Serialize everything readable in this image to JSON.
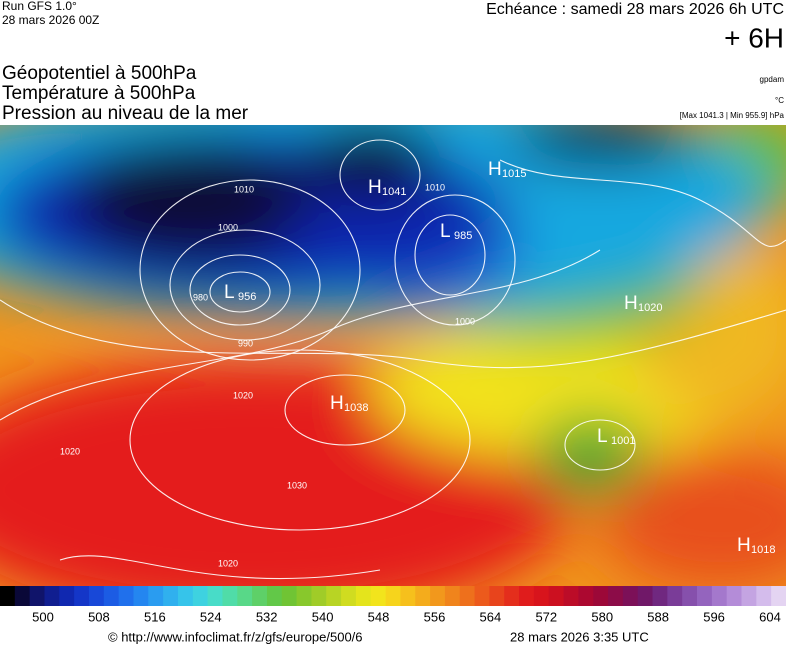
{
  "header": {
    "run": "Run GFS 1.0°",
    "run_date": "28 mars 2026 00Z",
    "echeance": "Echéance : samedi 28 mars 2026 6h UTC",
    "offset": "+ 6H",
    "fields": [
      "Géopotentiel à 500hPa",
      "Température à 500hPa",
      "Pression au niveau de la mer"
    ],
    "units": [
      "gpdam",
      "°C",
      "[Max 1041.3 | Min 955.9] hPa"
    ]
  },
  "centers": [
    {
      "letter": "H",
      "value": "1041"
    },
    {
      "letter": "L",
      "value": "956"
    },
    {
      "letter": "H",
      "value": "1038"
    },
    {
      "letter": "L",
      "value": "985"
    },
    {
      "letter": "H",
      "value": "1015"
    },
    {
      "letter": "H",
      "value": "1020"
    },
    {
      "letter": "L",
      "value": "1001"
    },
    {
      "letter": "H",
      "value": "1018"
    }
  ],
  "isobar_labels": [
    "1010",
    "1000",
    "980",
    "990",
    "1020",
    "1030",
    "1010",
    "1000",
    "1020",
    "1020"
  ],
  "scale": {
    "ticks": [
      500,
      508,
      516,
      524,
      532,
      540,
      548,
      556,
      564,
      572,
      580,
      588,
      596,
      604
    ]
  },
  "footer": {
    "url": "© http://www.infoclimat.fr/z/gfs/europe/500/6",
    "date": "28 mars 2026  3:35 UTC"
  }
}
